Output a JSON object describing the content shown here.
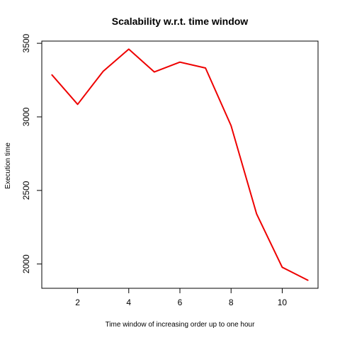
{
  "chart_data": {
    "type": "line",
    "title": "Scalability w.r.t. time window",
    "xlabel": "Time window of increasing order up to one hour",
    "ylabel": "Execution time",
    "x": [
      1,
      2,
      3,
      4,
      5,
      6,
      7,
      8,
      9,
      10,
      11
    ],
    "series": [
      {
        "values": [
          3285,
          3085,
          3310,
          3460,
          3305,
          3372,
          3332,
          2940,
          2340,
          1978,
          1890
        ],
        "color": "#ee0000"
      }
    ],
    "xlim": [
      0.6,
      11.4
    ],
    "ylim": [
      1835,
      3515
    ],
    "xticks": [
      2,
      4,
      6,
      8,
      10
    ],
    "yticks": [
      2000,
      2500,
      3000,
      3500
    ],
    "grid": false,
    "legend": "none"
  }
}
